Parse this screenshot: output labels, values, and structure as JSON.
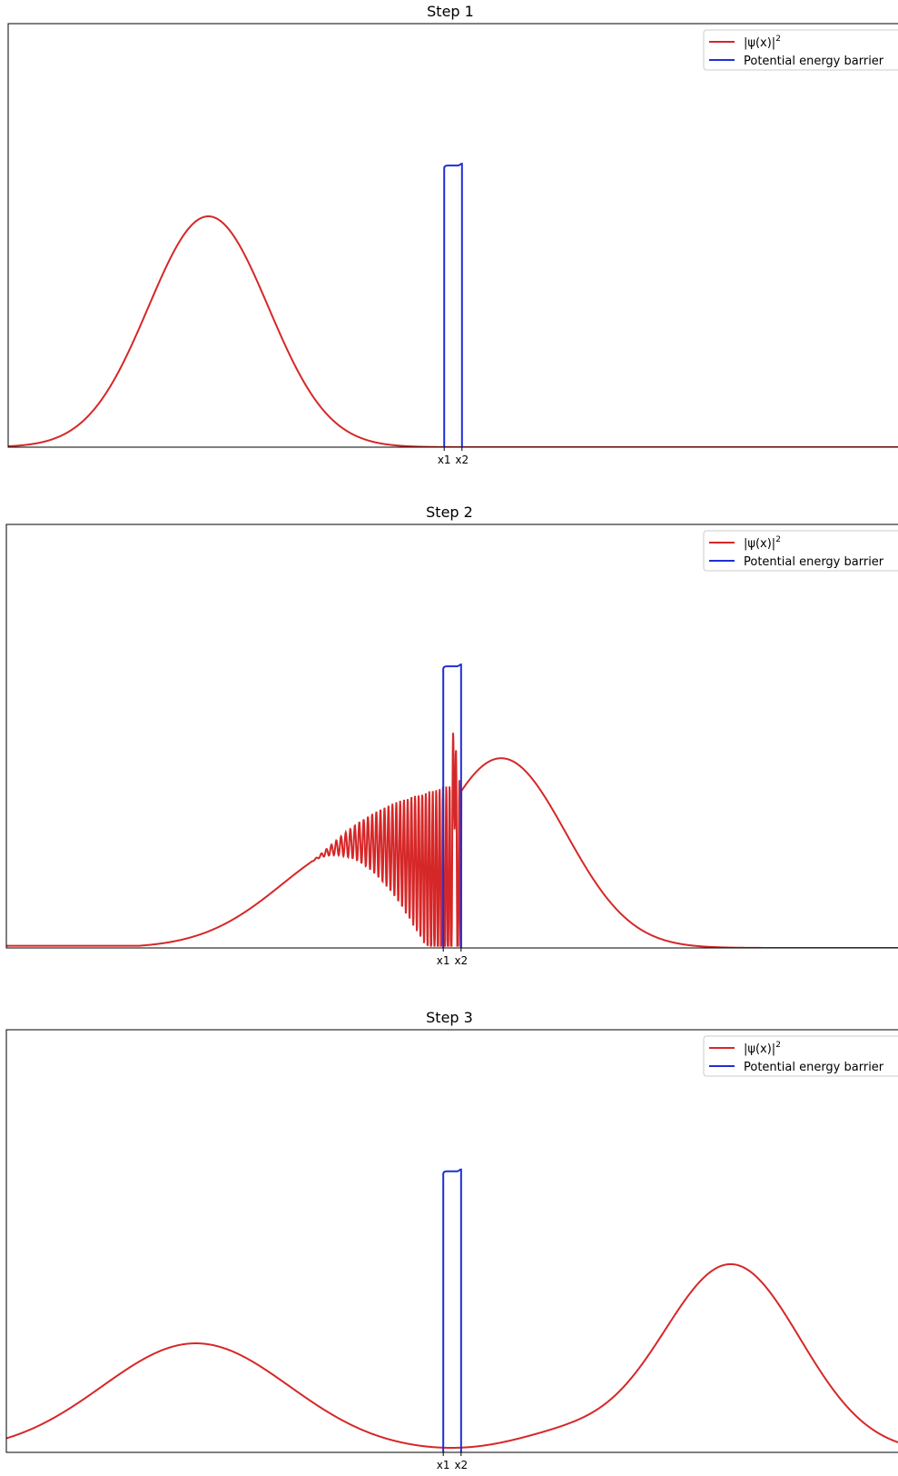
{
  "figure": {
    "background": "#ffffff",
    "colors": {
      "psi": "#d62728",
      "barrier": "#1f2fd6",
      "axes": "#000000"
    }
  },
  "chart_data": [
    {
      "type": "line",
      "title": "Step 1",
      "xlabel": "",
      "ylabel": "",
      "xlim": [
        -10,
        10
      ],
      "ylim": [
        0,
        1
      ],
      "grid": false,
      "legend_position": "top-right",
      "xticks": [
        {
          "value": -0.2,
          "label": "x1"
        },
        {
          "value": 0.2,
          "label": "x2"
        }
      ],
      "barrier": {
        "x1": -0.2,
        "x2": 0.2,
        "height": 0.665
      },
      "series": [
        {
          "name": "|ψ(x)|²",
          "label_tex": "|ψ(x)|",
          "color": "#d62728",
          "gaussians": [
            {
              "amp": 0.545,
              "center": -5.5,
              "sigma": 1.35
            }
          ],
          "oscillation": null
        },
        {
          "name": "Potential energy barrier",
          "color": "#1f2fd6",
          "kind": "barrier"
        }
      ]
    },
    {
      "type": "line",
      "title": "Step 2",
      "xlabel": "",
      "ylabel": "",
      "xlim": [
        -10,
        10
      ],
      "ylim": [
        0,
        1
      ],
      "grid": false,
      "legend_position": "top-right",
      "xticks": [
        {
          "value": -0.2,
          "label": "x1"
        },
        {
          "value": 0.2,
          "label": "x2"
        }
      ],
      "barrier": {
        "x1": -0.2,
        "x2": 0.2,
        "height": 0.665
      },
      "series": [
        {
          "name": "|ψ(x)|²",
          "label_tex": "|ψ(x)|",
          "color": "#d62728",
          "gaussians": [
            {
              "amp": 0.25,
              "center": -2.0,
              "sigma": 1.8,
              "side": "left"
            },
            {
              "amp": 0.448,
              "center": 1.1,
              "sigma": 1.45,
              "side": "right"
            }
          ],
          "oscillation": {
            "start": -3.2,
            "end": 0.2,
            "max_amp": 0.28,
            "cycles": 28,
            "peak": 0.715,
            "peak_x": 0.05
          }
        },
        {
          "name": "Potential energy barrier",
          "color": "#1f2fd6",
          "kind": "barrier"
        }
      ]
    },
    {
      "type": "line",
      "title": "Step 3",
      "xlabel": "",
      "ylabel": "",
      "xlim": [
        -10,
        10
      ],
      "ylim": [
        0,
        1
      ],
      "grid": false,
      "legend_position": "top-right",
      "xticks": [
        {
          "value": -0.2,
          "label": "x1"
        },
        {
          "value": 0.2,
          "label": "x2"
        }
      ],
      "barrier": {
        "x1": -0.2,
        "x2": 0.2,
        "height": 0.665
      },
      "series": [
        {
          "name": "|ψ(x)|²",
          "label_tex": "|ψ(x)|",
          "color": "#d62728",
          "gaussians": [
            {
              "amp": 0.258,
              "center": -5.75,
              "sigma": 2.1
            },
            {
              "amp": 0.445,
              "center": 6.25,
              "sigma": 1.55
            },
            {
              "amp": 0.04,
              "center": 2.5,
              "sigma": 1.2
            }
          ],
          "oscillation": null
        },
        {
          "name": "Potential energy barrier",
          "color": "#1f2fd6",
          "kind": "barrier"
        }
      ]
    }
  ]
}
